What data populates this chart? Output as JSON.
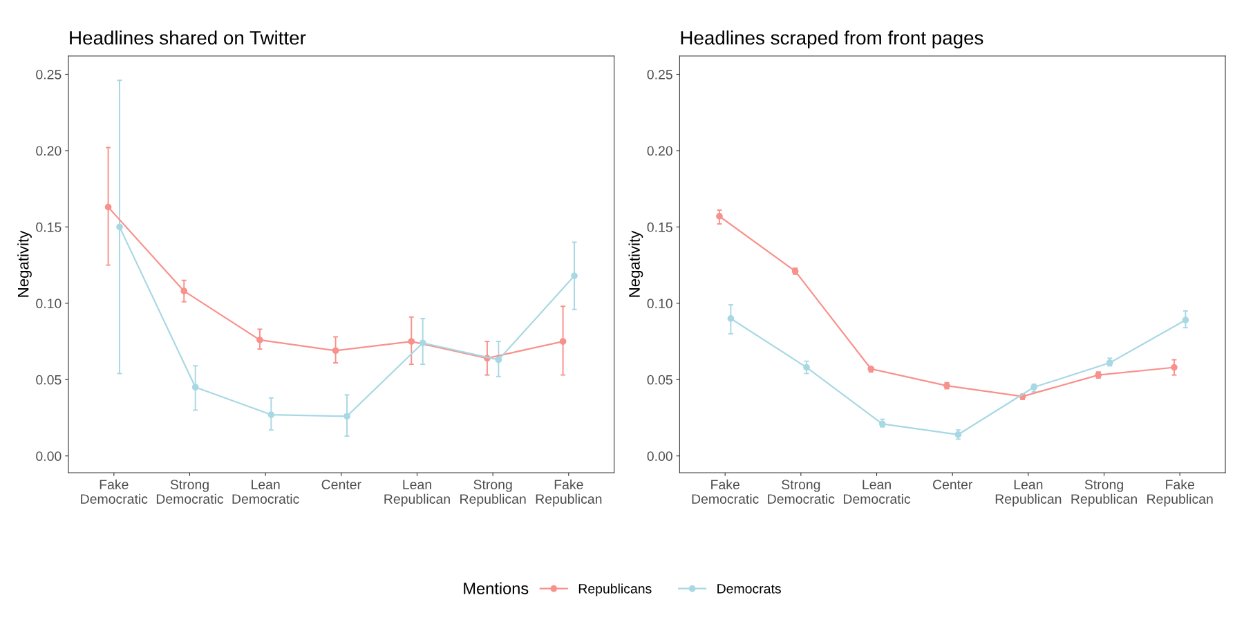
{
  "chart_data": [
    {
      "type": "line",
      "title": "Headlines shared on Twitter",
      "ylabel": "Negativity",
      "categories": [
        "Fake\nDemocratic",
        "Strong\nDemocratic",
        "Lean\nDemocratic",
        "Center",
        "Lean\nRepublican",
        "Strong\nRepublican",
        "Fake\nRepublican"
      ],
      "ylim": [
        -0.011,
        0.262
      ],
      "yticks": [
        {
          "value": 0,
          "label": "0.00"
        },
        {
          "value": 0.05,
          "label": "0.05"
        },
        {
          "value": 0.1,
          "label": "0.10"
        },
        {
          "value": 0.15,
          "label": "0.15"
        },
        {
          "value": 0.2,
          "label": "0.20"
        },
        {
          "value": 0.25,
          "label": "0.25"
        }
      ],
      "grid": false,
      "marker": "circle",
      "legend": "bottom",
      "legend_title": "Mentions",
      "series": [
        {
          "name": "Republicans",
          "color": "#f8918c",
          "values": [
            0.163,
            0.108,
            0.076,
            0.069,
            0.075,
            0.064,
            0.075
          ],
          "errors": [
            [
              0.125,
              0.202
            ],
            [
              0.101,
              0.115
            ],
            [
              0.07,
              0.083
            ],
            [
              0.061,
              0.078
            ],
            [
              0.06,
              0.091
            ],
            [
              0.053,
              0.075
            ],
            [
              0.053,
              0.098
            ]
          ]
        },
        {
          "name": "Democrats",
          "color": "#a8d8e4",
          "values": [
            0.15,
            0.045,
            0.027,
            0.026,
            0.074,
            0.063,
            0.118
          ],
          "errors": [
            [
              0.054,
              0.246
            ],
            [
              0.03,
              0.059
            ],
            [
              0.017,
              0.038
            ],
            [
              0.013,
              0.04
            ],
            [
              0.06,
              0.09
            ],
            [
              0.052,
              0.075
            ],
            [
              0.096,
              0.14
            ]
          ]
        }
      ]
    },
    {
      "type": "line",
      "title": "Headlines scraped from front pages",
      "ylabel": "Negativity",
      "categories": [
        "Fake\nDemocratic",
        "Strong\nDemocratic",
        "Lean\nDemocratic",
        "Center",
        "Lean\nRepublican",
        "Strong\nRepublican",
        "Fake\nRepublican"
      ],
      "ylim": [
        -0.011,
        0.262
      ],
      "yticks": [
        {
          "value": 0,
          "label": "0.00"
        },
        {
          "value": 0.05,
          "label": "0.05"
        },
        {
          "value": 0.1,
          "label": "0.10"
        },
        {
          "value": 0.15,
          "label": "0.15"
        },
        {
          "value": 0.2,
          "label": "0.20"
        },
        {
          "value": 0.25,
          "label": "0.25"
        }
      ],
      "grid": false,
      "marker": "circle",
      "series": [
        {
          "color": "#f8918c",
          "values": [
            0.157,
            0.121,
            0.057,
            0.046,
            0.039,
            0.053,
            0.058
          ],
          "errors": [
            [
              0.152,
              0.161
            ],
            [
              0.119,
              0.123
            ],
            [
              0.055,
              0.058
            ],
            [
              0.044,
              0.048
            ],
            [
              0.037,
              0.04
            ],
            [
              0.051,
              0.055
            ],
            [
              0.053,
              0.063
            ]
          ]
        },
        {
          "color": "#a8d8e4",
          "values": [
            0.09,
            0.058,
            0.021,
            0.014,
            0.045,
            0.061,
            0.089
          ],
          "errors": [
            [
              0.08,
              0.099
            ],
            [
              0.054,
              0.062
            ],
            [
              0.019,
              0.024
            ],
            [
              0.011,
              0.017
            ],
            [
              0.042,
              0.047
            ],
            [
              0.059,
              0.064
            ],
            [
              0.084,
              0.095
            ]
          ]
        }
      ]
    }
  ]
}
